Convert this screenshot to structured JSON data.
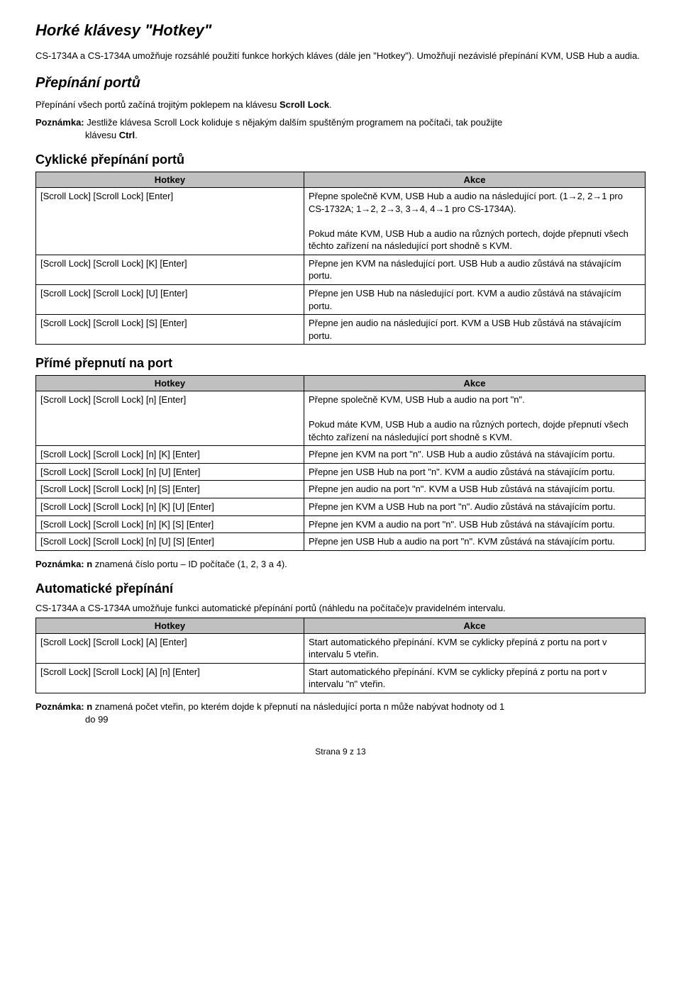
{
  "title": "Horké klávesy \"Hotkey\"",
  "intro": "CS-1734A a CS-1734A umožňuje rozsáhlé použití funkce horkých kláves (dále jen \"Hotkey\"). Umožňují nezávislé přepínání KVM, USB Hub a audia.",
  "section1": {
    "heading": "Přepínání portů",
    "p1_before_bold": "Přepínání všech portů začíná trojitým poklepem na klávesu ",
    "p1_bold": "Scroll Lock",
    "p1_after_bold": ".",
    "note_label": "Poznámka:",
    "note_text_before": " Jestliže klávesa Scroll Lock koliduje s nějakým dalším spuštěným programem na počítači, tak použijte",
    "note_text_indent": "klávesu ",
    "note_bold_ctrl": "Ctrl",
    "note_after_ctrl": "."
  },
  "cyclic": {
    "heading": "Cyklické přepínání portů",
    "header_hotkey": "Hotkey",
    "header_action": "Akce",
    "rows": [
      {
        "hotkey": "[Scroll Lock] [Scroll Lock] [Enter]",
        "action": "Přepne společně KVM, USB Hub a audio na následující port. (1→2, 2→1 pro CS-1732A; 1→2, 2→3, 3→4, 4→1 pro CS-1734A).\n\nPokud máte KVM, USB Hub a audio na různých portech, dojde přepnutí všech těchto zařízení na následující port shodně s KVM."
      },
      {
        "hotkey": "[Scroll Lock] [Scroll Lock] [K] [Enter]",
        "action": "Přepne jen KVM na následující port. USB Hub a audio zůstává na stávajícím portu."
      },
      {
        "hotkey": "[Scroll Lock] [Scroll Lock] [U] [Enter]",
        "action": "Přepne jen USB Hub na následující port. KVM a audio zůstává na stávajícím portu."
      },
      {
        "hotkey": "[Scroll Lock] [Scroll Lock] [S] [Enter]",
        "action": "Přepne jen audio na následující port. KVM a USB Hub zůstává na stávajícím portu."
      }
    ]
  },
  "direct": {
    "heading": "Přímé přepnutí na port",
    "header_hotkey": "Hotkey",
    "header_action": "Akce",
    "rows": [
      {
        "hotkey": "[Scroll Lock] [Scroll Lock] [n] [Enter]",
        "action": "Přepne společně KVM, USB Hub a audio na port \"n\".\n\nPokud máte KVM, USB Hub a audio na různých portech, dojde přepnutí všech těchto zařízení na následující port shodně s KVM."
      },
      {
        "hotkey": "[Scroll Lock] [Scroll Lock] [n] [K] [Enter]",
        "action": "Přepne jen KVM na port \"n\". USB Hub a audio zůstává na stávajícím portu."
      },
      {
        "hotkey": "[Scroll Lock] [Scroll Lock] [n] [U] [Enter]",
        "action": "Přepne jen USB Hub na port \"n\". KVM a audio zůstává na stávajícím portu."
      },
      {
        "hotkey": "[Scroll Lock] [Scroll Lock] [n] [S] [Enter]",
        "action": "Přepne jen audio na port \"n\". KVM a USB Hub zůstává na stávajícím portu."
      },
      {
        "hotkey": "[Scroll Lock] [Scroll Lock] [n] [K] [U] [Enter]",
        "action": "Přepne jen KVM a USB Hub na port \"n\". Audio zůstává na stávajícím portu."
      },
      {
        "hotkey": "[Scroll Lock] [Scroll Lock] [n] [K] [S] [Enter]",
        "action": "Přepne jen KVM a audio na port \"n\". USB Hub zůstává na stávajícím portu."
      },
      {
        "hotkey": "[Scroll Lock] [Scroll Lock] [n] [U] [S] [Enter]",
        "action": "Přepne jen USB Hub a audio na port \"n\". KVM zůstává na stávajícím portu."
      }
    ],
    "note_label": "Poznámka: n",
    "note_text": " znamená číslo portu – ID počítače (1, 2, 3 a 4)."
  },
  "auto": {
    "heading": "Automatické přepínání",
    "intro": "CS-1734A a CS-1734A umožňuje funkci automatické přepínání portů (náhledu na počítače)v pravidelném intervalu.",
    "header_hotkey": "Hotkey",
    "header_action": "Akce",
    "rows": [
      {
        "hotkey": "[Scroll Lock] [Scroll Lock] [A] [Enter]",
        "action": "Start automatického přepínání. KVM se cyklicky přepíná z portu na port v intervalu 5 vteřin."
      },
      {
        "hotkey": "[Scroll Lock] [Scroll Lock] [A] [n] [Enter]",
        "action": "Start automatického přepínání. KVM se cyklicky přepíná z portu na port v intervalu \"n\" vteřin."
      }
    ],
    "note_label": "Poznámka: n",
    "note_text_before": " znamená počet vteřin, po kterém dojde k přepnutí na následující porta n může nabývat hodnoty od 1",
    "note_text_indent": "do 99"
  },
  "footer": "Strana 9 z 13"
}
